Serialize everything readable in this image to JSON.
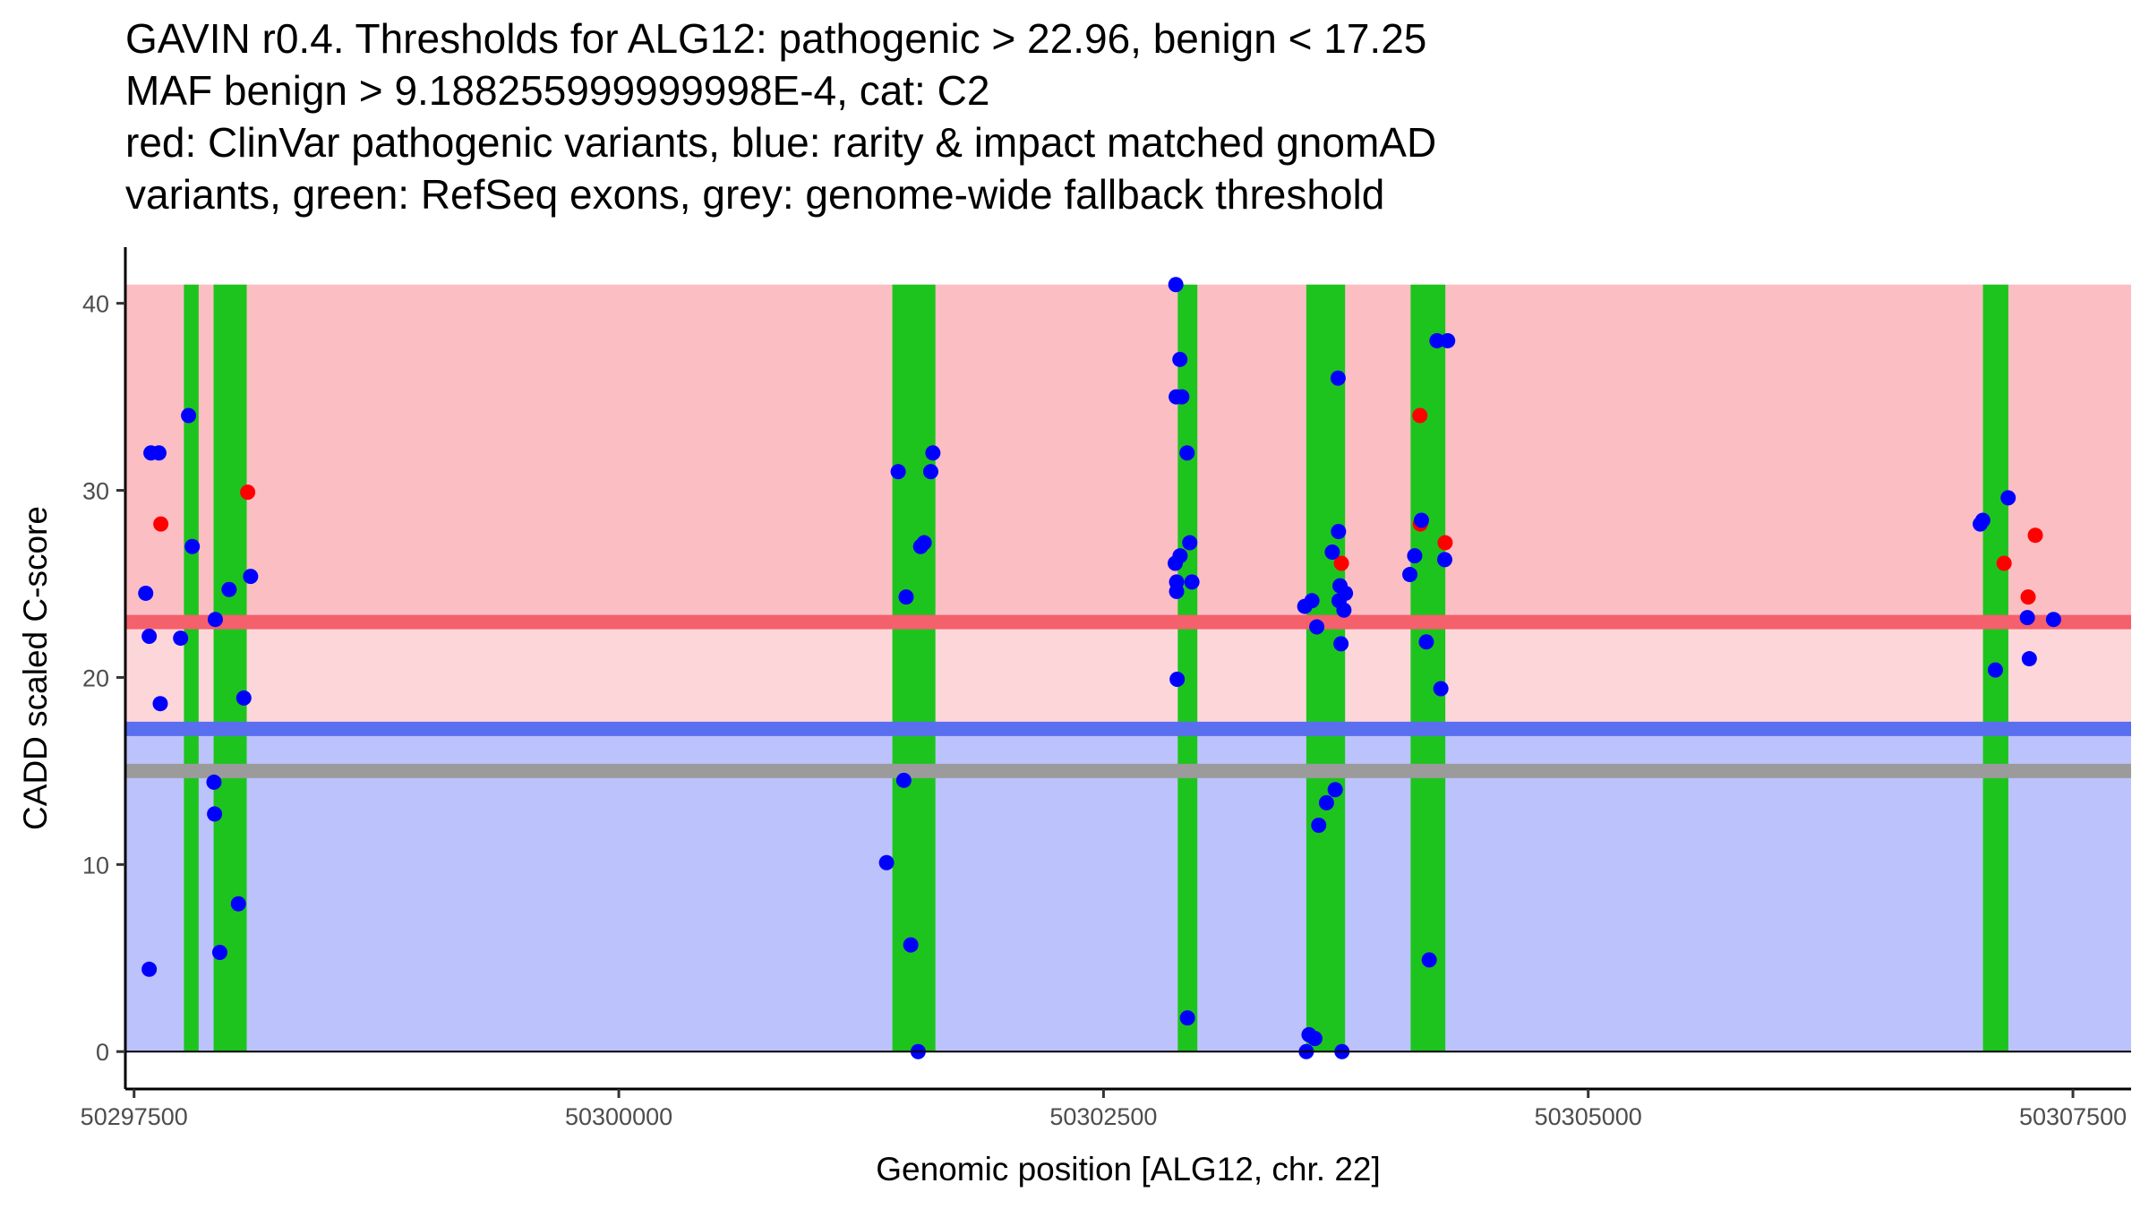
{
  "title": {
    "lines": [
      "GAVIN r0.4. Thresholds for ALG12: pathogenic > 22.96, benign < 17.25",
      "MAF benign > 9.188255999999998E-4, cat: C2",
      "red: ClinVar pathogenic variants, blue: rarity & impact matched gnomAD",
      "variants, green: RefSeq exons, grey: genome-wide fallback threshold"
    ]
  },
  "colors": {
    "pathogenic_zone": "#fbbec3",
    "uncertain_zone": "#fdd6da",
    "benign_zone": "#bcc2fb",
    "pathogenic_line": "#f4606b",
    "benign_line": "#5a6ff0",
    "fallback_line": "#9b9b9b",
    "exon": "#1ec41e",
    "clinvar_point": "#ff0000",
    "gnomad_point": "#0000ff"
  },
  "chart_data": {
    "type": "scatter",
    "xlabel": "Genomic position [ALG12, chr. 22]",
    "ylabel": "CADD scaled C-score",
    "xlim": [
      50297455,
      50307800
    ],
    "ylim": [
      -2.0,
      43.0
    ],
    "xticks": [
      50297500,
      50300000,
      50302500,
      50305000,
      50307500
    ],
    "yticks": [
      0,
      10,
      20,
      30,
      40
    ],
    "thresholds": {
      "pathogenic": 22.96,
      "benign": 17.25,
      "fallback": 15.0
    },
    "zones": [
      {
        "name": "pathogenic",
        "y0": 22.96,
        "y1": 41.0
      },
      {
        "name": "uncertain",
        "y0": 17.25,
        "y1": 22.96
      },
      {
        "name": "benign",
        "y0": 0.0,
        "y1": 17.25
      }
    ],
    "exons": [
      [
        50297757,
        50297833
      ],
      [
        50297910,
        50298081
      ],
      [
        50301411,
        50301633
      ],
      [
        50302883,
        50302984
      ],
      [
        50303546,
        50303746
      ],
      [
        50304084,
        50304263
      ],
      [
        50307036,
        50307167
      ]
    ],
    "series": [
      {
        "name": "ClinVar pathogenic variants",
        "color_key": "clinvar_point",
        "points": [
          [
            50297638,
            28.2
          ],
          [
            50298086,
            29.9
          ],
          [
            50303727,
            26.1
          ],
          [
            50304132,
            34.0
          ],
          [
            50304134,
            28.2
          ],
          [
            50304262,
            27.2
          ],
          [
            50307145,
            26.1
          ],
          [
            50307269,
            24.3
          ],
          [
            50307306,
            27.6
          ]
        ]
      },
      {
        "name": "gnomAD rarity & impact matched variants",
        "color_key": "gnomad_point",
        "points": [
          [
            50297560,
            24.5
          ],
          [
            50297578,
            22.2
          ],
          [
            50297578,
            4.4
          ],
          [
            50297587,
            32.0
          ],
          [
            50297628,
            32.0
          ],
          [
            50297635,
            18.6
          ],
          [
            50297740,
            22.1
          ],
          [
            50297781,
            34.0
          ],
          [
            50297800,
            27.0
          ],
          [
            50297912,
            14.4
          ],
          [
            50297915,
            12.7
          ],
          [
            50297919,
            23.1
          ],
          [
            50297942,
            5.3
          ],
          [
            50297990,
            24.7
          ],
          [
            50298038,
            7.9
          ],
          [
            50298066,
            18.9
          ],
          [
            50298101,
            25.4
          ],
          [
            50301381,
            10.1
          ],
          [
            50301441,
            31.0
          ],
          [
            50301470,
            14.5
          ],
          [
            50301482,
            24.3
          ],
          [
            50301506,
            5.7
          ],
          [
            50301544,
            0.0
          ],
          [
            50301557,
            27.0
          ],
          [
            50301575,
            27.2
          ],
          [
            50301609,
            31.0
          ],
          [
            50301620,
            32.0
          ],
          [
            50302870,
            26.1
          ],
          [
            50302873,
            41.0
          ],
          [
            50302875,
            35.0
          ],
          [
            50302877,
            25.1
          ],
          [
            50302877,
            24.6
          ],
          [
            50302880,
            19.9
          ],
          [
            50302894,
            37.0
          ],
          [
            50302895,
            26.5
          ],
          [
            50302904,
            35.0
          ],
          [
            50302931,
            32.0
          ],
          [
            50302933,
            1.8
          ],
          [
            50302945,
            27.2
          ],
          [
            50302956,
            25.1
          ],
          [
            50303538,
            23.8
          ],
          [
            50303546,
            0.0
          ],
          [
            50303560,
            0.9
          ],
          [
            50303575,
            24.1
          ],
          [
            50303590,
            0.7
          ],
          [
            50303600,
            22.7
          ],
          [
            50303610,
            12.1
          ],
          [
            50303650,
            13.3
          ],
          [
            50303680,
            26.7
          ],
          [
            50303695,
            14.0
          ],
          [
            50303710,
            36.0
          ],
          [
            50303712,
            27.8
          ],
          [
            50303715,
            24.1
          ],
          [
            50303720,
            24.9
          ],
          [
            50303725,
            21.8
          ],
          [
            50303730,
            0.0
          ],
          [
            50303740,
            23.6
          ],
          [
            50303748,
            24.5
          ],
          [
            50304080,
            25.5
          ],
          [
            50304105,
            26.5
          ],
          [
            50304140,
            28.4
          ],
          [
            50304165,
            21.9
          ],
          [
            50304180,
            4.9
          ],
          [
            50304220,
            38.0
          ],
          [
            50304240,
            19.4
          ],
          [
            50304260,
            26.3
          ],
          [
            50304275,
            38.0
          ],
          [
            50307022,
            28.2
          ],
          [
            50307035,
            28.4
          ],
          [
            50307100,
            20.4
          ],
          [
            50307166,
            29.6
          ],
          [
            50307265,
            23.2
          ],
          [
            50307275,
            21.0
          ],
          [
            50307400,
            23.1
          ]
        ]
      }
    ]
  }
}
